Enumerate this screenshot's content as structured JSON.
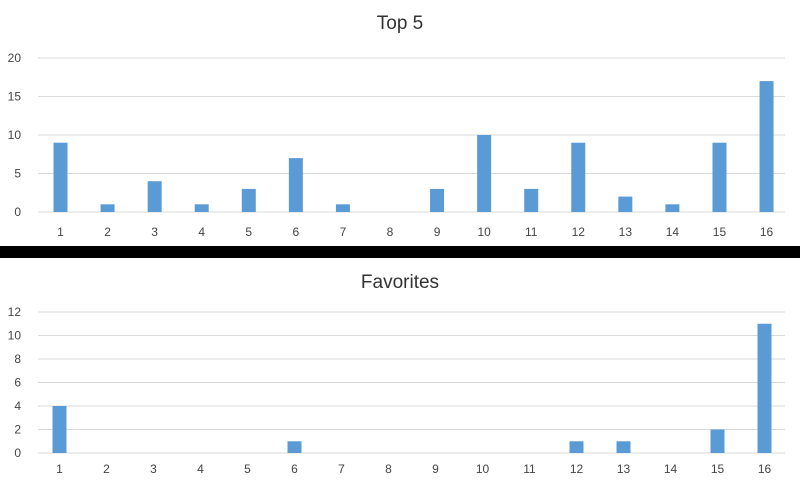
{
  "colors": {
    "bar": "#5B9BD5",
    "gridline": "#D9D9D9",
    "divider": "#000000"
  },
  "chart_data": [
    {
      "type": "bar",
      "title": "Top 5",
      "categories": [
        "1",
        "2",
        "3",
        "4",
        "5",
        "6",
        "7",
        "8",
        "9",
        "10",
        "11",
        "12",
        "13",
        "14",
        "15",
        "16"
      ],
      "values": [
        9,
        1,
        4,
        1,
        3,
        7,
        1,
        0,
        3,
        10,
        3,
        9,
        2,
        1,
        9,
        17
      ],
      "ylim": [
        0,
        20
      ],
      "yticks": [
        0,
        5,
        10,
        15,
        20
      ],
      "grid": true,
      "legend": "none"
    },
    {
      "type": "bar",
      "title": "Favorites",
      "categories": [
        "1",
        "2",
        "3",
        "4",
        "5",
        "6",
        "7",
        "8",
        "9",
        "10",
        "11",
        "12",
        "13",
        "14",
        "15",
        "16"
      ],
      "values": [
        4,
        0,
        0,
        0,
        0,
        1,
        0,
        0,
        0,
        0,
        0,
        1,
        1,
        0,
        2,
        11
      ],
      "ylim": [
        0,
        12
      ],
      "yticks": [
        0,
        2,
        4,
        6,
        8,
        10,
        12
      ],
      "grid": true,
      "legend": "none"
    }
  ]
}
